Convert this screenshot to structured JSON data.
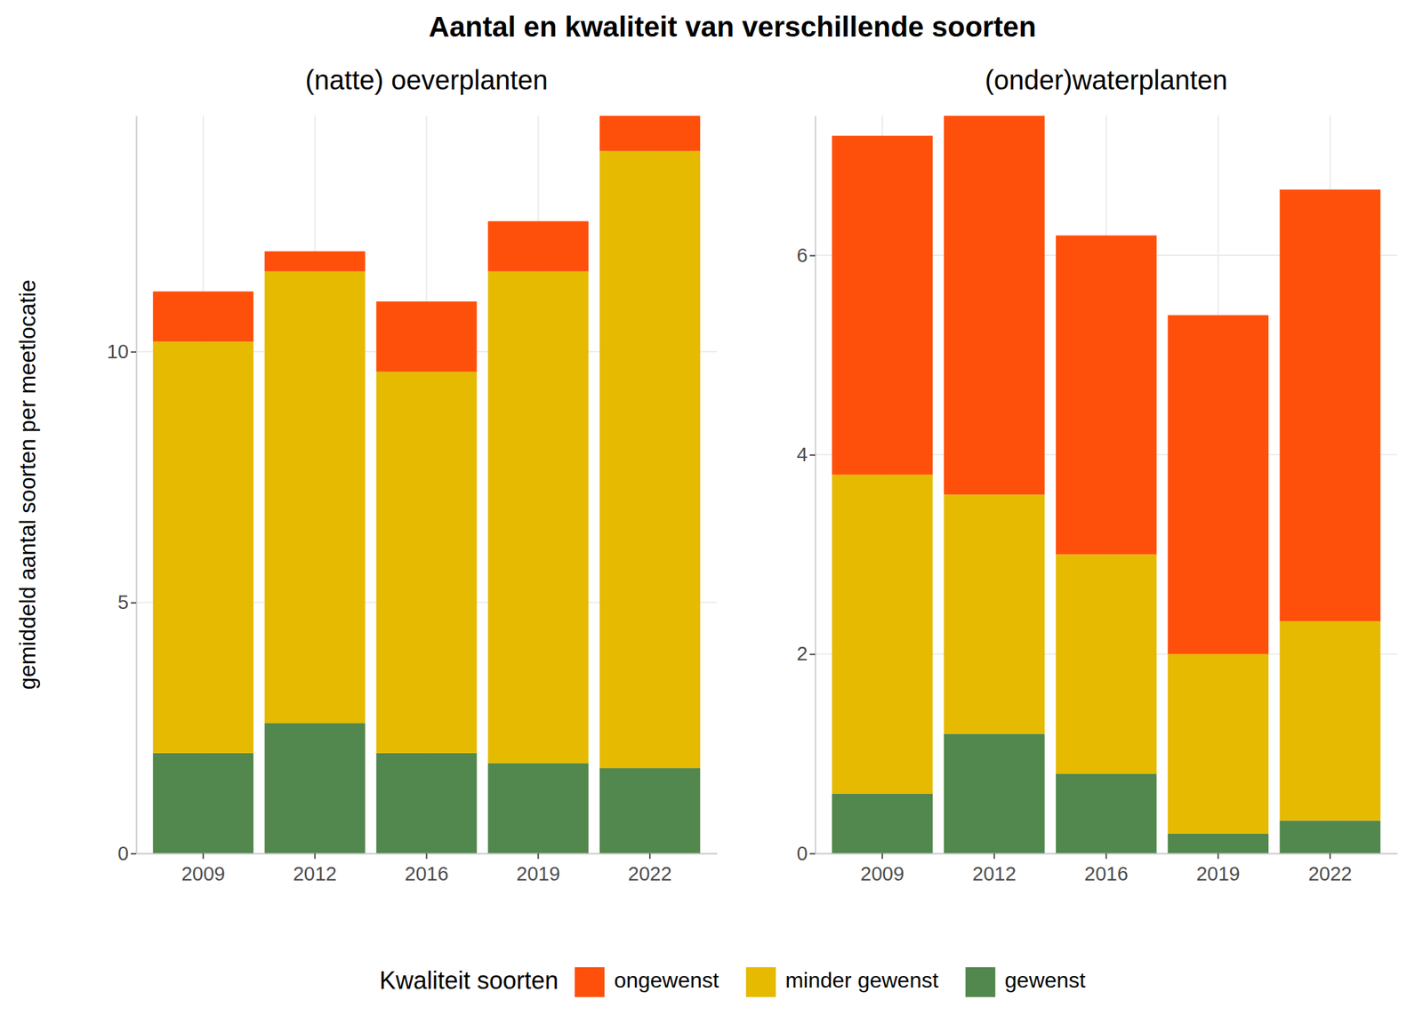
{
  "title": "Aantal en kwaliteit van verschillende soorten",
  "ylabel": "gemiddeld aantal soorten per meetlocatie",
  "legend_title": "Kwaliteit soorten",
  "chart_data": [
    {
      "type": "bar",
      "stacked": true,
      "grid": true,
      "legend": "bottom",
      "subtitle": "(natte) oeverplanten",
      "categories": [
        "2009",
        "2012",
        "2016",
        "2019",
        "2022"
      ],
      "series": [
        {
          "name": "ongewenst",
          "color": "#fe500a",
          "values": [
            1.0,
            0.4,
            1.4,
            1.0,
            0.7
          ]
        },
        {
          "name": "minder gewenst",
          "color": "#e5ba00",
          "values": [
            8.2,
            9.0,
            7.6,
            9.8,
            12.3
          ]
        },
        {
          "name": "gewenst",
          "color": "#52874d",
          "values": [
            2.0,
            2.6,
            2.0,
            1.8,
            1.7
          ]
        }
      ],
      "ylim": [
        0,
        14.7
      ],
      "yticks": [
        0,
        5,
        10
      ]
    },
    {
      "type": "bar",
      "stacked": true,
      "grid": true,
      "legend": "bottom",
      "subtitle": "(onder)waterplanten",
      "categories": [
        "2009",
        "2012",
        "2016",
        "2019",
        "2022"
      ],
      "series": [
        {
          "name": "ongewenst",
          "color": "#fe500a",
          "values": [
            3.4,
            3.8,
            3.2,
            3.4,
            4.33
          ]
        },
        {
          "name": "minder gewenst",
          "color": "#e5ba00",
          "values": [
            3.2,
            2.4,
            2.2,
            1.8,
            2.0
          ]
        },
        {
          "name": "gewenst",
          "color": "#52874d",
          "values": [
            0.6,
            1.2,
            0.8,
            0.2,
            0.33
          ]
        }
      ],
      "ylim": [
        0,
        7.4
      ],
      "yticks": [
        0,
        2,
        4,
        6
      ]
    }
  ]
}
